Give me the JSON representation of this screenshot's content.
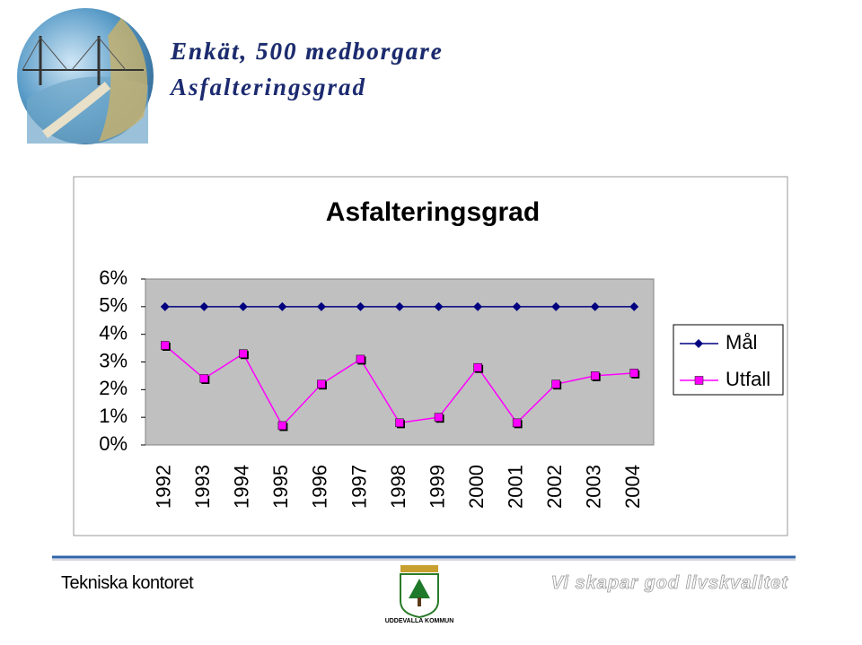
{
  "header": {
    "title": "Enkät, 500 medborgare",
    "subtitle": "Asfalteringsgrad"
  },
  "chart_data": {
    "type": "line",
    "title": "Asfalteringsgrad",
    "categories": [
      "1992",
      "1993",
      "1994",
      "1995",
      "1996",
      "1997",
      "1998",
      "1999",
      "2000",
      "2001",
      "2002",
      "2003",
      "2004"
    ],
    "series": [
      {
        "name": "Mål",
        "color": "#000080",
        "marker": "diamond",
        "values": [
          5,
          5,
          5,
          5,
          5,
          5,
          5,
          5,
          5,
          5,
          5,
          5,
          5
        ]
      },
      {
        "name": "Utfall",
        "color": "#ff00ff",
        "marker": "square",
        "values": [
          3.6,
          2.4,
          3.3,
          0.7,
          2.2,
          3.1,
          0.8,
          1.0,
          2.8,
          0.8,
          2.2,
          2.5,
          2.6
        ]
      }
    ],
    "ylim": [
      0,
      6
    ],
    "yticks": [
      {
        "value": 0,
        "label": "0%"
      },
      {
        "value": 1,
        "label": "1%"
      },
      {
        "value": 2,
        "label": "2%"
      },
      {
        "value": 3,
        "label": "3%"
      },
      {
        "value": 4,
        "label": "4%"
      },
      {
        "value": 5,
        "label": "5%"
      },
      {
        "value": 6,
        "label": "6%"
      }
    ],
    "grid": false,
    "legend": "right",
    "plot_background": "#c0c0c0"
  },
  "footer": {
    "left": "Tekniska kontoret",
    "logo_text": "UDDEVALLA KOMMUN",
    "right": "Vi skapar god livskvalitet"
  }
}
